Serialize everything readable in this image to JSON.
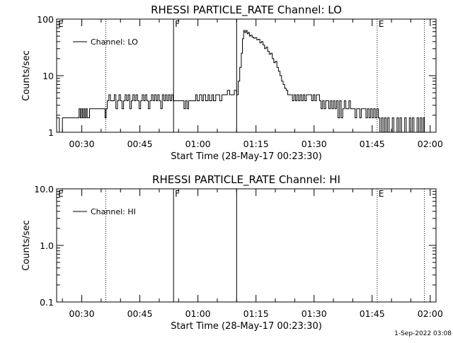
{
  "timestamp": "1-Sep-2022 03:08",
  "chart_data": [
    {
      "type": "line",
      "title": "RHESSI PARTICLE_RATE Channel: LO",
      "xlabel": "Start Time (28-May-17 00:23:30)",
      "ylabel": "Counts/sec",
      "yscale": "log",
      "ylim": [
        1,
        100
      ],
      "xlim_minutes_after_midnight": [
        23.5,
        121.5
      ],
      "yticks": [
        {
          "v": 1,
          "label": "1"
        },
        {
          "v": 10,
          "label": "10"
        },
        {
          "v": 100,
          "label": "100"
        }
      ],
      "xticks": [
        {
          "t": 30,
          "label": "00:30"
        },
        {
          "t": 45,
          "label": "00:45"
        },
        {
          "t": 60,
          "label": "01:00"
        },
        {
          "t": 75,
          "label": "01:15"
        },
        {
          "t": 90,
          "label": "01:30"
        },
        {
          "t": 105,
          "label": "01:45"
        },
        {
          "t": 120,
          "label": "02:00"
        }
      ],
      "legend": {
        "label": "Channel: LO",
        "position": "top-left"
      },
      "markers": [
        {
          "t": 23.5,
          "label": "E",
          "style": "none"
        },
        {
          "t": 36.2,
          "label": "",
          "style": "dotted"
        },
        {
          "t": 53.7,
          "label": "F",
          "style": "solid"
        },
        {
          "t": 70.0,
          "label": "",
          "style": "solid"
        },
        {
          "t": 106.3,
          "label": "E",
          "style": "dotted"
        },
        {
          "t": 118.5,
          "label": "",
          "style": "dotted"
        }
      ],
      "series": [
        {
          "name": "Channel: LO",
          "points": [
            [
              23.5,
              1.8
            ],
            [
              24.2,
              1.0
            ],
            [
              25.0,
              1.8
            ],
            [
              29.0,
              1.8
            ],
            [
              29.3,
              2.6
            ],
            [
              29.6,
              1.8
            ],
            [
              29.9,
              2.6
            ],
            [
              30.2,
              1.8
            ],
            [
              30.5,
              2.6
            ],
            [
              30.8,
              1.8
            ],
            [
              31.1,
              2.6
            ],
            [
              31.4,
              1.8
            ],
            [
              32.0,
              2.6
            ],
            [
              35.8,
              2.6
            ],
            [
              36.0,
              1.8
            ],
            [
              36.3,
              2.6
            ],
            [
              36.6,
              3.6
            ],
            [
              37.0,
              4.6
            ],
            [
              37.4,
              3.6
            ],
            [
              38.0,
              3.6
            ],
            [
              38.4,
              4.6
            ],
            [
              38.8,
              2.6
            ],
            [
              39.2,
              3.6
            ],
            [
              39.6,
              4.6
            ],
            [
              40.0,
              3.6
            ],
            [
              40.4,
              2.6
            ],
            [
              40.8,
              3.6
            ],
            [
              41.2,
              4.6
            ],
            [
              41.6,
              3.6
            ],
            [
              42.0,
              4.6
            ],
            [
              42.4,
              2.6
            ],
            [
              42.8,
              3.6
            ],
            [
              43.2,
              4.6
            ],
            [
              43.6,
              3.6
            ],
            [
              44.0,
              4.6
            ],
            [
              44.4,
              3.6
            ],
            [
              44.8,
              2.6
            ],
            [
              45.2,
              3.6
            ],
            [
              45.6,
              4.6
            ],
            [
              46.0,
              3.6
            ],
            [
              46.4,
              4.6
            ],
            [
              46.8,
              3.6
            ],
            [
              47.2,
              2.6
            ],
            [
              47.6,
              3.6
            ],
            [
              48.0,
              4.6
            ],
            [
              48.4,
              3.6
            ],
            [
              48.8,
              4.6
            ],
            [
              49.2,
              3.6
            ],
            [
              49.6,
              4.6
            ],
            [
              50.0,
              3.6
            ],
            [
              50.4,
              2.6
            ],
            [
              50.8,
              4.6
            ],
            [
              51.2,
              3.6
            ],
            [
              51.6,
              4.6
            ],
            [
              52.0,
              3.6
            ],
            [
              52.4,
              4.6
            ],
            [
              52.8,
              3.6
            ],
            [
              53.2,
              4.6
            ],
            [
              53.6,
              3.6
            ],
            [
              54.0,
              3.6
            ],
            [
              56.0,
              3.6
            ],
            [
              56.4,
              2.6
            ],
            [
              56.8,
              3.6
            ],
            [
              57.2,
              2.6
            ],
            [
              57.6,
              3.6
            ],
            [
              58.0,
              3.6
            ],
            [
              59.0,
              3.6
            ],
            [
              59.4,
              4.6
            ],
            [
              59.8,
              3.6
            ],
            [
              60.4,
              4.6
            ],
            [
              61.0,
              3.6
            ],
            [
              61.4,
              4.6
            ],
            [
              62.0,
              3.6
            ],
            [
              62.6,
              4.6
            ],
            [
              63.0,
              3.6
            ],
            [
              63.6,
              4.6
            ],
            [
              64.0,
              3.6
            ],
            [
              64.6,
              4.6
            ],
            [
              65.2,
              4.6
            ],
            [
              65.6,
              3.6
            ],
            [
              66.2,
              4.6
            ],
            [
              67.0,
              4.6
            ],
            [
              67.6,
              5.5
            ],
            [
              68.2,
              4.6
            ],
            [
              68.8,
              4.6
            ],
            [
              69.4,
              5.5
            ],
            [
              70.0,
              4.6
            ],
            [
              70.4,
              8.0
            ],
            [
              70.8,
              14.0
            ],
            [
              71.2,
              25.0
            ],
            [
              71.5,
              45.0
            ],
            [
              71.8,
              63.0
            ],
            [
              72.1,
              58.0
            ],
            [
              72.4,
              63.0
            ],
            [
              72.7,
              55.0
            ],
            [
              73.0,
              58.0
            ],
            [
              73.3,
              50.0
            ],
            [
              73.6,
              52.0
            ],
            [
              74.0,
              48.0
            ],
            [
              74.4,
              46.0
            ],
            [
              74.8,
              47.0
            ],
            [
              75.2,
              43.0
            ],
            [
              75.6,
              44.0
            ],
            [
              76.0,
              38.0
            ],
            [
              76.4,
              40.0
            ],
            [
              76.8,
              35.0
            ],
            [
              77.2,
              30.0
            ],
            [
              77.6,
              32.0
            ],
            [
              78.0,
              27.0
            ],
            [
              78.4,
              24.0
            ],
            [
              78.8,
              25.0
            ],
            [
              79.2,
              20.0
            ],
            [
              79.6,
              17.0
            ],
            [
              80.0,
              18.0
            ],
            [
              80.4,
              14.0
            ],
            [
              80.8,
              12.0
            ],
            [
              81.2,
              10.0
            ],
            [
              81.6,
              8.0
            ],
            [
              82.0,
              7.0
            ],
            [
              82.4,
              6.0
            ],
            [
              82.8,
              5.5
            ],
            [
              83.2,
              4.6
            ],
            [
              84.0,
              4.6
            ],
            [
              84.4,
              3.6
            ],
            [
              84.8,
              4.6
            ],
            [
              85.2,
              3.6
            ],
            [
              85.6,
              4.6
            ],
            [
              86.0,
              3.6
            ],
            [
              86.4,
              4.6
            ],
            [
              86.8,
              3.6
            ],
            [
              87.2,
              4.6
            ],
            [
              87.6,
              3.6
            ],
            [
              88.0,
              4.6
            ],
            [
              89.0,
              4.6
            ],
            [
              89.4,
              3.6
            ],
            [
              89.8,
              4.6
            ],
            [
              90.2,
              3.6
            ],
            [
              90.6,
              4.6
            ],
            [
              91.0,
              4.6
            ],
            [
              91.4,
              3.6
            ],
            [
              91.8,
              2.6
            ],
            [
              92.2,
              3.6
            ],
            [
              92.6,
              2.6
            ],
            [
              93.0,
              3.6
            ],
            [
              93.4,
              3.6
            ],
            [
              93.8,
              2.6
            ],
            [
              94.2,
              3.6
            ],
            [
              94.6,
              2.6
            ],
            [
              95.0,
              3.6
            ],
            [
              95.4,
              2.6
            ],
            [
              95.8,
              3.6
            ],
            [
              96.2,
              1.8
            ],
            [
              96.6,
              3.6
            ],
            [
              97.0,
              1.8
            ],
            [
              97.4,
              2.6
            ],
            [
              97.8,
              3.6
            ],
            [
              98.2,
              2.6
            ],
            [
              98.6,
              2.6
            ],
            [
              99.0,
              3.6
            ],
            [
              99.4,
              2.6
            ],
            [
              99.8,
              2.6
            ],
            [
              100.2,
              2.6
            ],
            [
              100.6,
              1.8
            ],
            [
              101.0,
              2.6
            ],
            [
              101.4,
              2.6
            ],
            [
              101.8,
              1.8
            ],
            [
              102.2,
              2.6
            ],
            [
              102.6,
              2.6
            ],
            [
              103.0,
              2.6
            ],
            [
              103.4,
              1.8
            ],
            [
              103.8,
              2.6
            ],
            [
              104.2,
              1.8
            ],
            [
              104.6,
              2.6
            ],
            [
              105.0,
              1.8
            ],
            [
              105.4,
              2.6
            ],
            [
              105.8,
              1.8
            ],
            [
              106.2,
              2.6
            ],
            [
              106.6,
              1.8
            ],
            [
              107.0,
              1.0
            ],
            [
              107.4,
              1.8
            ],
            [
              107.8,
              1.0
            ],
            [
              108.2,
              1.8
            ],
            [
              108.6,
              1.0
            ],
            [
              109.0,
              1.8
            ],
            [
              109.4,
              1.0
            ],
            [
              109.8,
              1.0
            ],
            [
              110.2,
              1.8
            ],
            [
              110.6,
              1.0
            ],
            [
              111.0,
              1.0
            ],
            [
              111.4,
              1.8
            ],
            [
              111.8,
              1.0
            ],
            [
              112.2,
              1.8
            ],
            [
              112.6,
              1.0
            ],
            [
              113.0,
              1.0
            ],
            [
              113.4,
              1.8
            ],
            [
              113.8,
              1.0
            ],
            [
              114.2,
              1.0
            ],
            [
              114.6,
              1.8
            ],
            [
              115.0,
              1.0
            ],
            [
              115.4,
              1.8
            ],
            [
              115.8,
              1.0
            ],
            [
              116.2,
              1.0
            ],
            [
              116.6,
              1.8
            ],
            [
              117.0,
              1.0
            ],
            [
              117.4,
              1.8
            ],
            [
              117.8,
              1.0
            ],
            [
              118.2,
              1.8
            ],
            [
              118.5,
              1.0
            ]
          ]
        }
      ]
    },
    {
      "type": "line",
      "title": "RHESSI PARTICLE_RATE Channel: HI",
      "xlabel": "Start Time (28-May-17 00:23:30)",
      "ylabel": "Counts/sec",
      "yscale": "log",
      "ylim": [
        0.1,
        10
      ],
      "xlim_minutes_after_midnight": [
        23.5,
        121.5
      ],
      "yticks": [
        {
          "v": 0.1,
          "label": "0.1"
        },
        {
          "v": 1,
          "label": "1.0"
        },
        {
          "v": 10,
          "label": "10.0"
        }
      ],
      "xticks": [
        {
          "t": 30,
          "label": "00:30"
        },
        {
          "t": 45,
          "label": "00:45"
        },
        {
          "t": 60,
          "label": "01:00"
        },
        {
          "t": 75,
          "label": "01:15"
        },
        {
          "t": 90,
          "label": "01:30"
        },
        {
          "t": 105,
          "label": "01:45"
        },
        {
          "t": 120,
          "label": "02:00"
        }
      ],
      "legend": {
        "label": "Channel: HI",
        "position": "top-left"
      },
      "markers": [
        {
          "t": 23.5,
          "label": "E",
          "style": "none"
        },
        {
          "t": 36.2,
          "label": "",
          "style": "dotted"
        },
        {
          "t": 53.7,
          "label": "F",
          "style": "solid"
        },
        {
          "t": 70.0,
          "label": "",
          "style": "solid"
        },
        {
          "t": 106.3,
          "label": "E",
          "style": "dotted"
        },
        {
          "t": 118.5,
          "label": "",
          "style": "dotted"
        }
      ],
      "series": [
        {
          "name": "Channel: HI",
          "points": []
        }
      ]
    }
  ]
}
